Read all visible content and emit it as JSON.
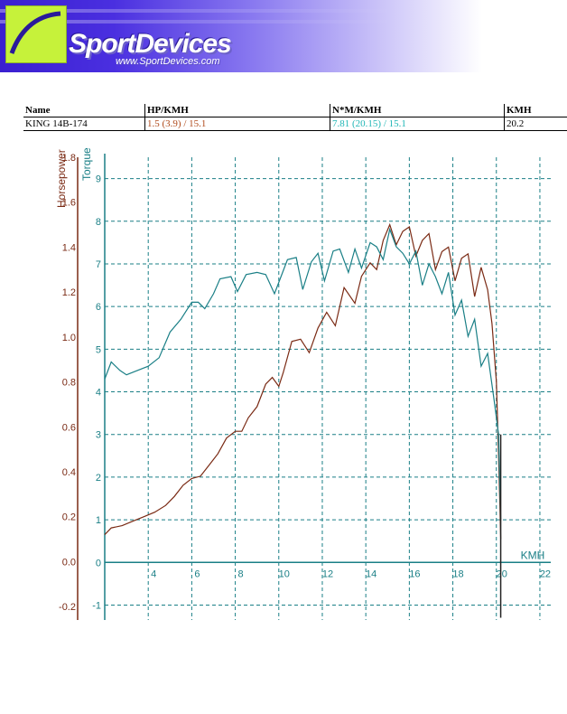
{
  "brand": {
    "name": "SportDevices",
    "url": "www.SportDevices.com"
  },
  "info_table": {
    "headers": [
      "Name",
      "HP/KMH",
      "N*M/KMH",
      "KMH"
    ],
    "row": {
      "name": "KING 14B-174",
      "hp": "1.5 (3.9) / 15.1",
      "torque": "7.81 (20.15) / 15.1",
      "kmh": "20.2"
    }
  },
  "colors": {
    "horsepower": "#7a2a14",
    "torque": "#1a7f86",
    "grid": "#1a7f86",
    "hp_text": "#b04a1a",
    "torque_text": "#1fb6b6"
  },
  "chart_data": {
    "type": "line",
    "grid": true,
    "x": {
      "label": "KMH",
      "ticks": [
        "4",
        "6",
        "8",
        "10",
        "12",
        "14",
        "16",
        "18",
        "20",
        "22"
      ],
      "range": [
        2.0,
        22.5
      ]
    },
    "y_left": {
      "label": "Horsepower",
      "ticks": [
        "-0.2",
        "0.0",
        "0.2",
        "0.4",
        "0.6",
        "0.8",
        "1.0",
        "1.2",
        "1.4",
        "1.6",
        "1.8"
      ],
      "range": [
        -0.26,
        1.8
      ]
    },
    "y_right": {
      "label": "Torque",
      "ticks": [
        "-1",
        "0",
        "1",
        "2",
        "3",
        "4",
        "5",
        "6",
        "7",
        "8",
        "9"
      ],
      "range": [
        -1.35,
        9.5
      ]
    },
    "series": [
      {
        "name": "Horsepower",
        "axis": "left",
        "color": "#7a2a14",
        "points": [
          [
            2.0,
            0.12
          ],
          [
            2.3,
            0.15
          ],
          [
            2.8,
            0.16
          ],
          [
            3.3,
            0.18
          ],
          [
            3.8,
            0.2
          ],
          [
            4.3,
            0.22
          ],
          [
            4.8,
            0.25
          ],
          [
            5.2,
            0.29
          ],
          [
            5.6,
            0.34
          ],
          [
            6.0,
            0.37
          ],
          [
            6.4,
            0.38
          ],
          [
            6.8,
            0.43
          ],
          [
            7.2,
            0.48
          ],
          [
            7.6,
            0.55
          ],
          [
            8.0,
            0.58
          ],
          [
            8.3,
            0.58
          ],
          [
            8.6,
            0.64
          ],
          [
            9.0,
            0.69
          ],
          [
            9.4,
            0.79
          ],
          [
            9.7,
            0.82
          ],
          [
            10.0,
            0.78
          ],
          [
            10.2,
            0.84
          ],
          [
            10.6,
            0.98
          ],
          [
            11.0,
            0.99
          ],
          [
            11.4,
            0.93
          ],
          [
            11.8,
            1.04
          ],
          [
            12.2,
            1.11
          ],
          [
            12.6,
            1.05
          ],
          [
            13.0,
            1.22
          ],
          [
            13.5,
            1.15
          ],
          [
            13.8,
            1.27
          ],
          [
            14.2,
            1.33
          ],
          [
            14.5,
            1.3
          ],
          [
            14.8,
            1.43
          ],
          [
            15.1,
            1.5
          ],
          [
            15.4,
            1.41
          ],
          [
            15.7,
            1.47
          ],
          [
            16.0,
            1.49
          ],
          [
            16.3,
            1.36
          ],
          [
            16.6,
            1.43
          ],
          [
            16.9,
            1.46
          ],
          [
            17.2,
            1.3
          ],
          [
            17.5,
            1.38
          ],
          [
            17.8,
            1.4
          ],
          [
            18.1,
            1.25
          ],
          [
            18.4,
            1.35
          ],
          [
            18.7,
            1.37
          ],
          [
            19.0,
            1.18
          ],
          [
            19.3,
            1.31
          ],
          [
            19.6,
            1.21
          ],
          [
            19.8,
            1.06
          ],
          [
            20.0,
            0.8
          ],
          [
            20.1,
            0.48
          ],
          [
            20.2,
            0.1
          ]
        ]
      },
      {
        "name": "Torque",
        "axis": "right",
        "color": "#1a7f86",
        "points": [
          [
            2.0,
            4.3
          ],
          [
            2.3,
            4.7
          ],
          [
            2.7,
            4.5
          ],
          [
            3.0,
            4.4
          ],
          [
            3.5,
            4.5
          ],
          [
            4.0,
            4.6
          ],
          [
            4.5,
            4.8
          ],
          [
            5.0,
            5.4
          ],
          [
            5.5,
            5.7
          ],
          [
            6.0,
            6.1
          ],
          [
            6.3,
            6.1
          ],
          [
            6.6,
            5.95
          ],
          [
            7.0,
            6.3
          ],
          [
            7.3,
            6.65
          ],
          [
            7.8,
            6.7
          ],
          [
            8.1,
            6.35
          ],
          [
            8.5,
            6.75
          ],
          [
            9.0,
            6.8
          ],
          [
            9.4,
            6.75
          ],
          [
            9.8,
            6.3
          ],
          [
            10.1,
            6.7
          ],
          [
            10.4,
            7.1
          ],
          [
            10.8,
            7.15
          ],
          [
            11.1,
            6.4
          ],
          [
            11.5,
            7.05
          ],
          [
            11.8,
            7.25
          ],
          [
            12.1,
            6.6
          ],
          [
            12.5,
            7.3
          ],
          [
            12.8,
            7.35
          ],
          [
            13.2,
            6.8
          ],
          [
            13.5,
            7.35
          ],
          [
            13.8,
            6.9
          ],
          [
            14.2,
            7.5
          ],
          [
            14.5,
            7.4
          ],
          [
            14.8,
            7.1
          ],
          [
            15.1,
            7.81
          ],
          [
            15.4,
            7.4
          ],
          [
            15.7,
            7.25
          ],
          [
            16.0,
            7.0
          ],
          [
            16.3,
            7.3
          ],
          [
            16.6,
            6.5
          ],
          [
            16.9,
            7.0
          ],
          [
            17.2,
            6.7
          ],
          [
            17.5,
            6.3
          ],
          [
            17.8,
            6.8
          ],
          [
            18.1,
            5.8
          ],
          [
            18.4,
            6.15
          ],
          [
            18.7,
            5.3
          ],
          [
            19.0,
            5.7
          ],
          [
            19.3,
            4.6
          ],
          [
            19.6,
            4.9
          ],
          [
            19.9,
            3.8
          ],
          [
            20.1,
            3.0
          ],
          [
            20.2,
            1.0
          ]
        ]
      }
    ]
  }
}
